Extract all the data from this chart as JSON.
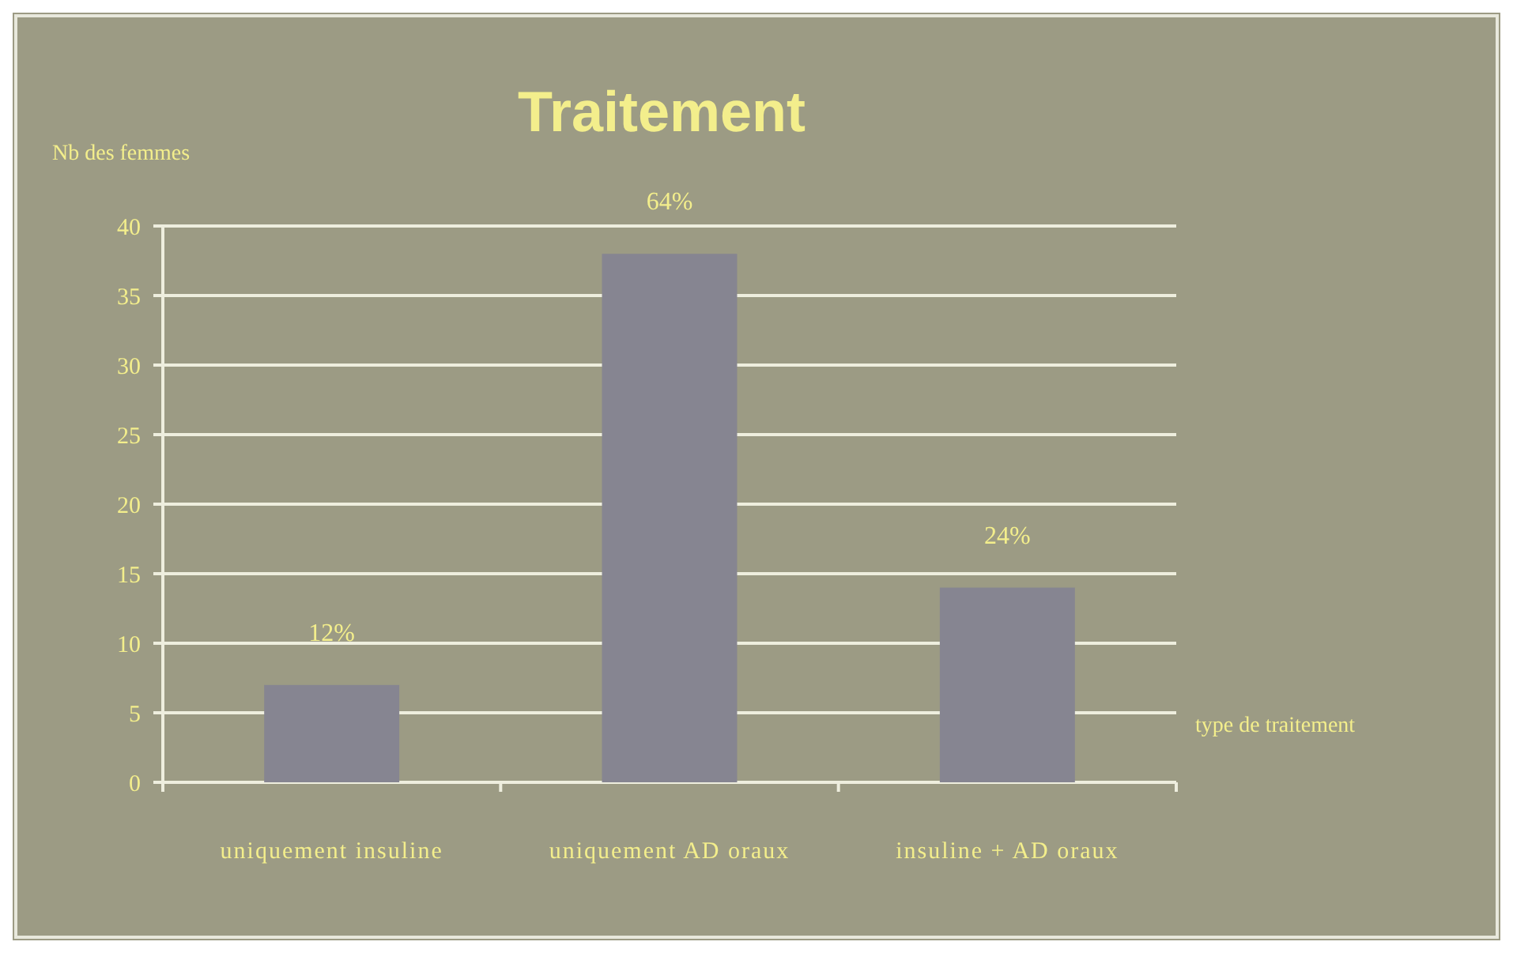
{
  "chart_data": {
    "type": "bar",
    "title": "Traitement",
    "xlabel": "type de traitement",
    "ylabel": "Nb des femmes",
    "categories": [
      "uniquement insuline",
      "uniquement AD oraux",
      "insuline + AD oraux"
    ],
    "values": [
      7,
      38,
      14
    ],
    "color": "#868591",
    "annotations": [
      {
        "text": "12%",
        "x": "uniquement insuline",
        "y": 7
      },
      {
        "text": "64%",
        "x": "uniquement AD oraux",
        "y": 38
      },
      {
        "text": "24%",
        "x": "insuline + AD oraux",
        "y": 14
      }
    ],
    "ylim": [
      0,
      40
    ],
    "yticks": [
      0,
      5,
      10,
      15,
      20,
      25,
      30,
      35,
      40
    ],
    "grid": "y"
  }
}
